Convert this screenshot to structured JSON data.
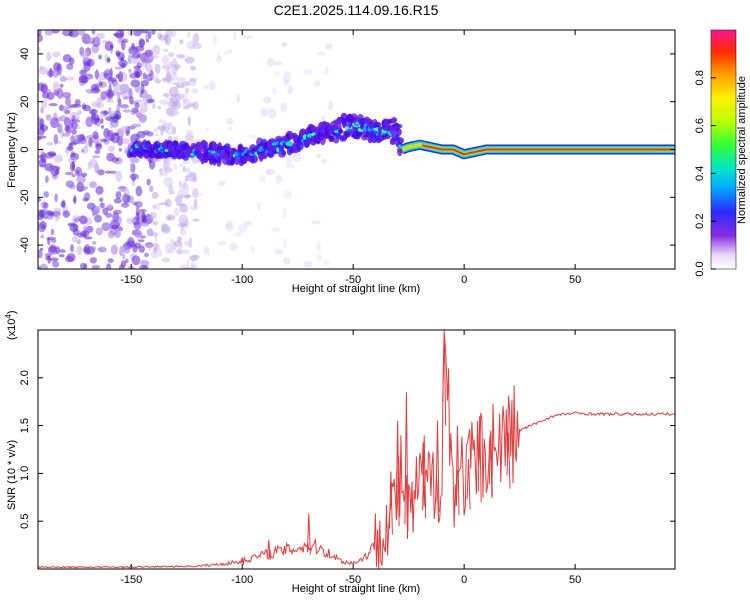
{
  "title": "C2E1.2025.114.09.16.R15",
  "chart_data": [
    {
      "type": "heatmap",
      "xlabel": "Height of straight line (km)",
      "ylabel": "Frequency (Hz)",
      "xlim": [
        -192,
        95
      ],
      "ylim": [
        -50,
        50
      ],
      "xticks": [
        -150,
        -100,
        -50,
        0,
        50
      ],
      "yticks": [
        -40,
        -20,
        0,
        20,
        40
      ],
      "colorbar": {
        "label": "Normalized spectral amplitude",
        "range": [
          0,
          1
        ],
        "ticks": [
          0.0,
          0.2,
          0.4,
          0.6,
          0.8
        ],
        "tick_labels": [
          "0.0",
          "0.2",
          "0.4",
          "0.6",
          "0.8"
        ]
      },
      "ridge": {
        "x": [
          -145,
          -130,
          -120,
          -110,
          -100,
          -90,
          -80,
          -70,
          -60,
          -55,
          -50,
          -45,
          -40,
          -35,
          -30,
          -28,
          -25,
          -20,
          -15,
          -10,
          -5,
          0,
          5,
          10,
          30,
          50,
          70,
          95
        ],
        "frequency": [
          0,
          0,
          -1,
          -2,
          -2,
          0,
          2,
          5,
          8,
          9,
          10,
          9,
          8,
          7,
          8,
          0,
          1,
          2,
          1,
          0,
          0,
          -2,
          -1,
          0,
          0,
          0,
          0,
          0
        ]
      }
    },
    {
      "type": "line",
      "xlabel": "Height of straight line (km)",
      "ylabel": "SNR (10 * v/v)",
      "y_exponent_label": "(x10",
      "y_exponent_power": "4",
      "xlim": [
        -192,
        95
      ],
      "ylim": [
        0,
        2.5
      ],
      "xticks": [
        -150,
        -100,
        -50,
        0,
        50
      ],
      "yticks": [
        0.5,
        1.0,
        1.5,
        2.0
      ],
      "series": [
        {
          "color": "#e53b3b",
          "x": [
            -192,
            -150,
            -120,
            -110,
            -100,
            -95,
            -90,
            -85,
            -80,
            -75,
            -70,
            -65,
            -60,
            -55,
            -50,
            -45,
            -40,
            -37,
            -33,
            -30,
            -28,
            -25,
            -20,
            -15,
            -12,
            -10,
            -9,
            -5,
            0,
            5,
            10,
            15,
            20,
            25,
            30,
            35,
            40,
            45,
            50,
            60,
            70,
            80,
            95
          ],
          "values": [
            0.02,
            0.02,
            0.03,
            0.05,
            0.08,
            0.12,
            0.15,
            0.18,
            0.2,
            0.22,
            0.25,
            0.22,
            0.15,
            0.08,
            0.06,
            0.12,
            0.25,
            0.45,
            0.6,
            0.75,
            1.0,
            0.5,
            0.9,
            0.85,
            1.0,
            0.9,
            2.5,
            0.9,
            1.0,
            1.1,
            1.25,
            1.3,
            1.4,
            1.45,
            1.5,
            1.55,
            1.6,
            1.62,
            1.63,
            1.62,
            1.62,
            1.62,
            1.62
          ],
          "spikes": {
            "x": [
              -100,
              -88,
              -70,
              -33,
              -30,
              -26,
              -18,
              -12,
              -9,
              -3,
              2,
              7,
              12,
              20
            ],
            "values": [
              0.12,
              0.3,
              0.58,
              1.02,
              1.55,
              1.85,
              1.4,
              1.55,
              2.5,
              1.5,
              1.15,
              1.6,
              1.45,
              1.42
            ]
          }
        }
      ]
    }
  ]
}
